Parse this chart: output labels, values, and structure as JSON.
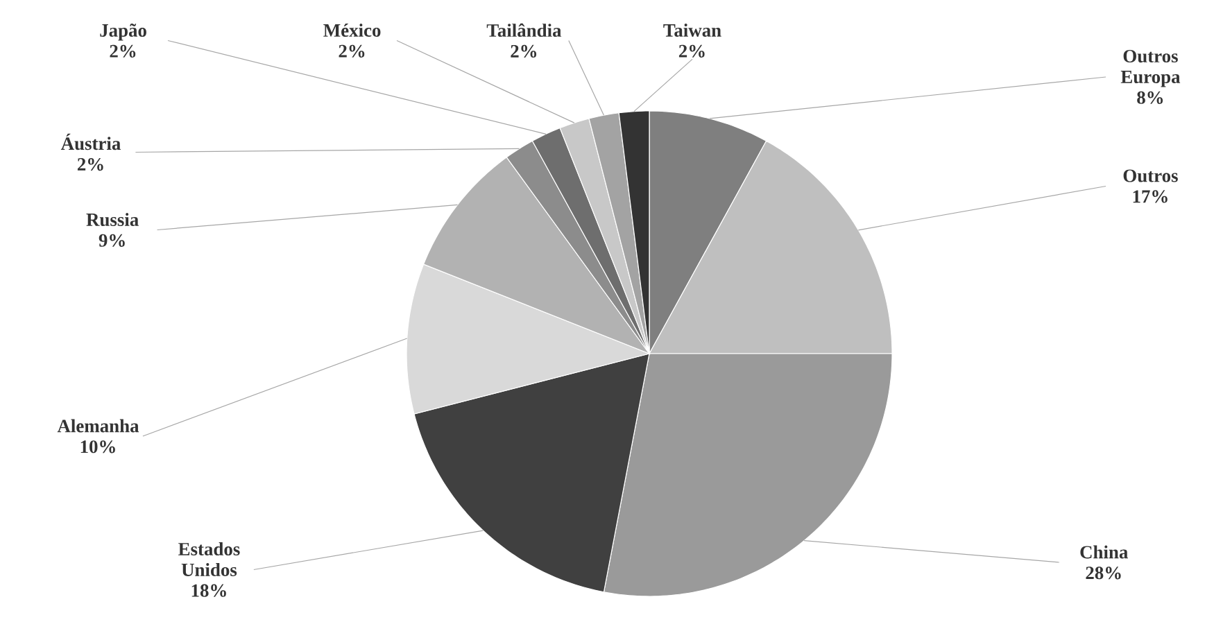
{
  "chart_data": {
    "type": "pie",
    "categories": [
      "Outros Europa",
      "Outros",
      "China",
      "Estados Unidos",
      "Alemanha",
      "Russia",
      "Áustria",
      "Japão",
      "México",
      "Tailândia",
      "Taiwan"
    ],
    "values": [
      8,
      17,
      28,
      18,
      10,
      9,
      2,
      2,
      2,
      2,
      2
    ],
    "value_labels": [
      "8%",
      "17%",
      "28%",
      "18%",
      "10%",
      "9%",
      "2%",
      "2%",
      "2%",
      "2%",
      "2%"
    ],
    "colors": [
      "#7f7f7f",
      "#bfbfbf",
      "#9a9a9a",
      "#404040",
      "#d9d9d9",
      "#b2b2b2",
      "#8c8c8c",
      "#6e6e6e",
      "#c8c8c8",
      "#a3a3a3",
      "#333333"
    ]
  }
}
